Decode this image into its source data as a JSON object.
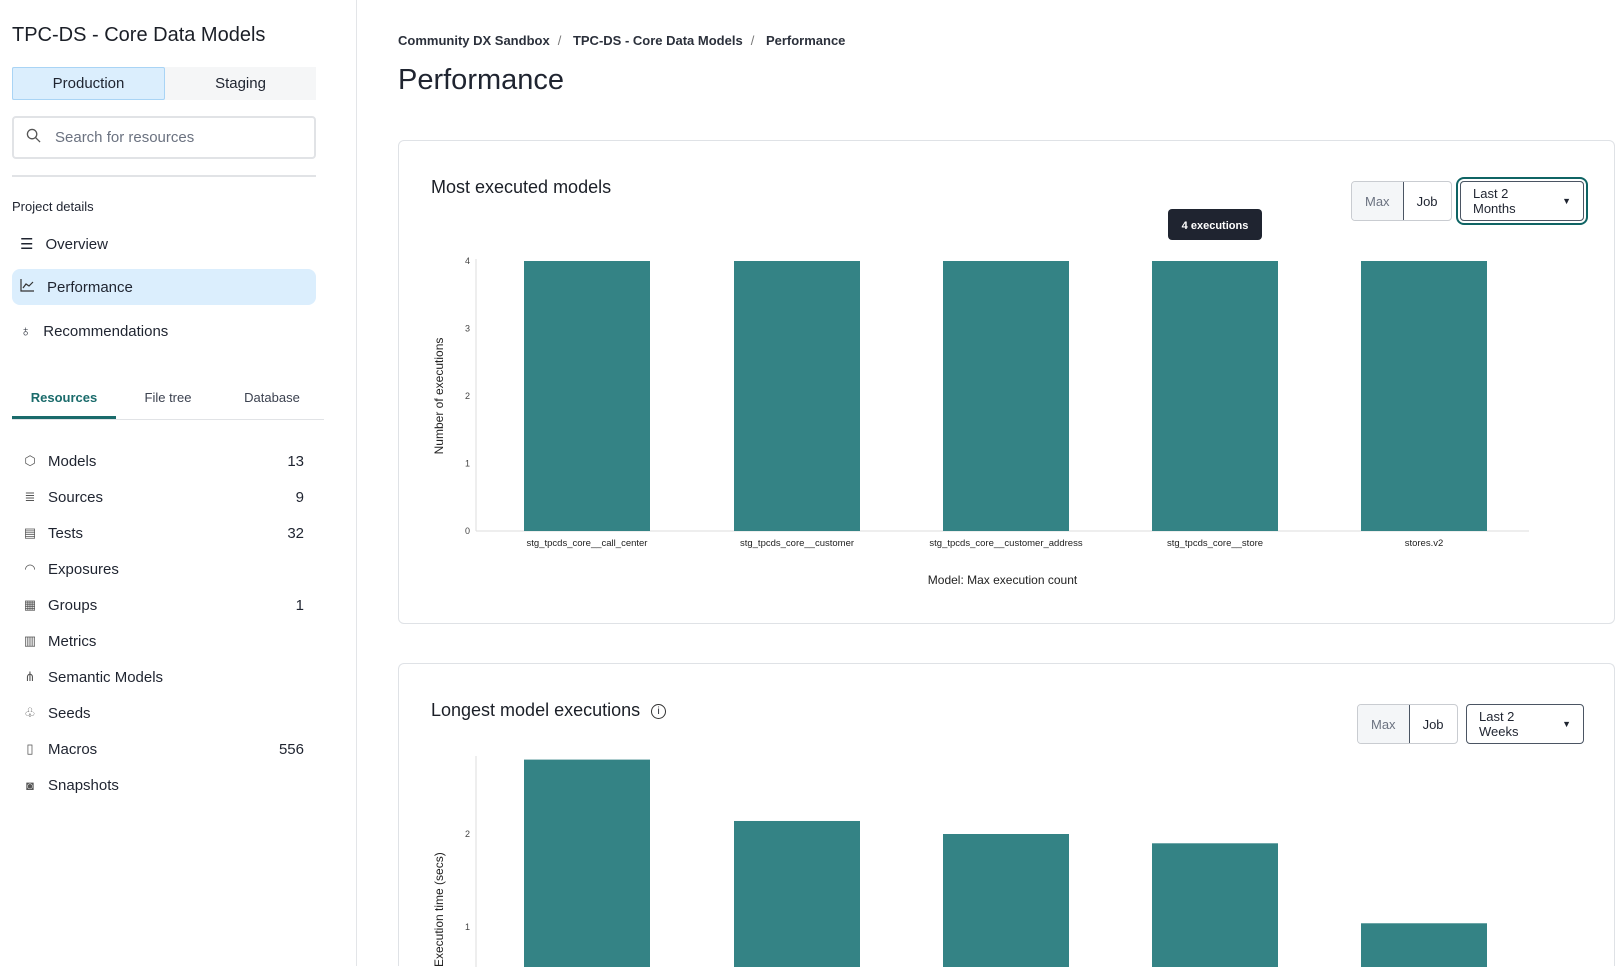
{
  "sidebar": {
    "project_title": "TPC-DS - Core Data Models",
    "env_tabs": [
      "Production",
      "Staging"
    ],
    "search_placeholder": "Search for resources",
    "section_label": "Project details",
    "nav": [
      {
        "label": "Overview",
        "icon": "list-icon"
      },
      {
        "label": "Performance",
        "icon": "chart-line-icon"
      },
      {
        "label": "Recommendations",
        "icon": "lightbulb-icon"
      }
    ],
    "tabs": [
      "Resources",
      "File tree",
      "Database"
    ],
    "resources": [
      {
        "label": "Models",
        "count": "13",
        "icon": "cube-icon"
      },
      {
        "label": "Sources",
        "count": "9",
        "icon": "database-icon"
      },
      {
        "label": "Tests",
        "count": "32",
        "icon": "clipboard-icon"
      },
      {
        "label": "Exposures",
        "count": "",
        "icon": "gauge-icon"
      },
      {
        "label": "Groups",
        "count": "1",
        "icon": "grid-icon"
      },
      {
        "label": "Metrics",
        "count": "",
        "icon": "bar-chart-icon"
      },
      {
        "label": "Semantic Models",
        "count": "",
        "icon": "nodes-icon"
      },
      {
        "label": "Seeds",
        "count": "",
        "icon": "seedling-icon"
      },
      {
        "label": "Macros",
        "count": "556",
        "icon": "file-icon"
      },
      {
        "label": "Snapshots",
        "count": "",
        "icon": "camera-icon"
      }
    ]
  },
  "main": {
    "breadcrumbs": [
      "Community DX Sandbox",
      "TPC-DS - Core Data Models",
      "Performance"
    ],
    "title": "Performance",
    "cards": [
      {
        "title": "Most executed models",
        "seg": [
          "Max",
          "Job"
        ],
        "range": "Last 2 Months",
        "tooltip": "4 executions"
      },
      {
        "title": "Longest model executions",
        "seg": [
          "Max",
          "Job"
        ],
        "range": "Last 2 Weeks"
      }
    ]
  },
  "colors": {
    "accent": "#1a6b6b",
    "bar": "#348385",
    "active_bg": "#dbeefd"
  },
  "chart_data": [
    {
      "type": "bar",
      "title": "Most executed models",
      "ylabel": "Number of executions",
      "xlabel": "Model: Max execution count",
      "categories": [
        "stg_tpcds_core__call_center",
        "stg_tpcds_core__customer",
        "stg_tpcds_core__customer_address",
        "stg_tpcds_core__store",
        "stores.v2"
      ],
      "values": [
        4,
        4,
        4,
        4,
        4
      ],
      "ylim": [
        0,
        4
      ],
      "yticks": [
        "0",
        "1",
        "2",
        "3",
        "4"
      ],
      "grid": false
    },
    {
      "type": "bar",
      "title": "Longest model executions",
      "ylabel": "Execution time (secs)",
      "values": [
        2.8,
        2.14,
        2.0,
        1.9,
        1.04
      ],
      "yticks": [
        "1",
        "2"
      ],
      "grid": false
    }
  ]
}
